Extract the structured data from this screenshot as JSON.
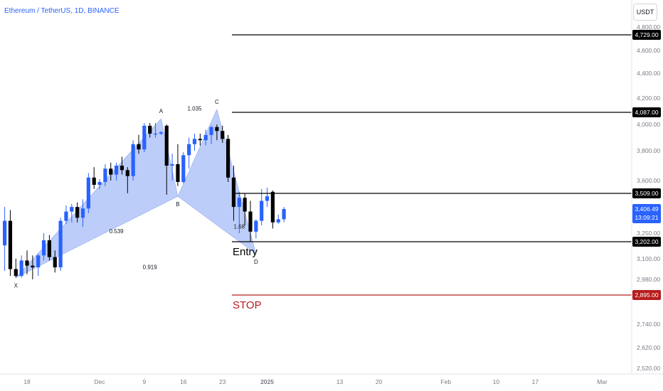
{
  "header": {
    "symbol_title": "Ethereum / TetherUS, 1D, BINANCE",
    "currency_button": "USDT"
  },
  "chart_data": {
    "type": "candlestick",
    "title": "Ethereum / TetherUS, 1D, BINANCE",
    "ylim": [
      2520,
      4860
    ],
    "y_ticks": [
      "4,800.00",
      "4,600.00",
      "4,400.00",
      "4,200.00",
      "4,000.00",
      "3,800.00",
      "3,600.00",
      "3,250.00",
      "3,100.00",
      "2,980.00",
      "2,740.00",
      "2,620.00",
      "2,520.00"
    ],
    "y_tick_values": [
      4800,
      4600,
      4400,
      4200,
      4000,
      3800,
      3600,
      3250,
      3100,
      2980,
      2740,
      2620,
      2520
    ],
    "x_ticks": [
      {
        "label": "18",
        "day": 0
      },
      {
        "label": "Dec",
        "day": 13
      },
      {
        "label": "9",
        "day": 21
      },
      {
        "label": "16",
        "day": 28
      },
      {
        "label": "23",
        "day": 35
      },
      {
        "label": "2025",
        "day": 43
      },
      {
        "label": "13",
        "day": 56
      },
      {
        "label": "20",
        "day": 63
      },
      {
        "label": "Feb",
        "day": 75
      },
      {
        "label": "10",
        "day": 84
      },
      {
        "label": "17",
        "day": 91
      },
      {
        "label": "Mar",
        "day": 103
      }
    ],
    "candles": [
      [
        -4,
        3180,
        3420,
        3030,
        3330
      ],
      [
        -3,
        3330,
        3400,
        3000,
        3040
      ],
      [
        -2,
        3040,
        3100,
        2990,
        3000
      ],
      [
        -1,
        3000,
        3120,
        2990,
        3090
      ],
      [
        0,
        3090,
        3150,
        3010,
        3060
      ],
      [
        1,
        3060,
        3120,
        2980,
        3050
      ],
      [
        2,
        3050,
        3130,
        3000,
        3120
      ],
      [
        3,
        3120,
        3250,
        3090,
        3210
      ],
      [
        4,
        3210,
        3240,
        3090,
        3110
      ],
      [
        5,
        3110,
        3150,
        3020,
        3050
      ],
      [
        6,
        3050,
        3350,
        3030,
        3330
      ],
      [
        7,
        3330,
        3430,
        3310,
        3390
      ],
      [
        8,
        3390,
        3440,
        3320,
        3420
      ],
      [
        9,
        3420,
        3450,
        3320,
        3350
      ],
      [
        10,
        3350,
        3470,
        3290,
        3410
      ],
      [
        11,
        3410,
        3650,
        3380,
        3620
      ],
      [
        12,
        3620,
        3690,
        3540,
        3570
      ],
      [
        13,
        3570,
        3610,
        3540,
        3590
      ],
      [
        14,
        3590,
        3710,
        3560,
        3680
      ],
      [
        15,
        3680,
        3720,
        3600,
        3640
      ],
      [
        16,
        3640,
        3720,
        3600,
        3700
      ],
      [
        17,
        3700,
        3760,
        3640,
        3670
      ],
      [
        18,
        3670,
        3690,
        3510,
        3630
      ],
      [
        19,
        3630,
        3880,
        3600,
        3850
      ],
      [
        20,
        3850,
        3920,
        3780,
        3810
      ],
      [
        21,
        3810,
        4010,
        3790,
        3990
      ],
      [
        22,
        3990,
        4010,
        3900,
        3930
      ],
      [
        23,
        3930,
        4010,
        3900,
        3930
      ],
      [
        24,
        3930,
        3950,
        3920,
        3940
      ],
      [
        25,
        3990,
        4000,
        3500,
        3700
      ],
      [
        26,
        3700,
        3780,
        3600,
        3710
      ],
      [
        27,
        3710,
        3850,
        3560,
        3590
      ],
      [
        28,
        3590,
        3790,
        3580,
        3770
      ],
      [
        29,
        3770,
        3900,
        3680,
        3850
      ],
      [
        30,
        3850,
        3930,
        3800,
        3890
      ],
      [
        31,
        3890,
        3930,
        3840,
        3880
      ],
      [
        32,
        3880,
        3960,
        3840,
        3920
      ],
      [
        33,
        3920,
        3990,
        3850,
        3980
      ],
      [
        34,
        3980,
        4000,
        3880,
        3950
      ],
      [
        35,
        3950,
        3990,
        3860,
        3890
      ],
      [
        36,
        3890,
        3920,
        3590,
        3620
      ],
      [
        37,
        3620,
        3700,
        3330,
        3420
      ],
      [
        38,
        3420,
        3520,
        3250,
        3480
      ],
      [
        39,
        3480,
        3510,
        3300,
        3390
      ],
      [
        40,
        3390,
        3460,
        3200,
        3260
      ],
      [
        41,
        3260,
        3340,
        3220,
        3330
      ],
      [
        42,
        3330,
        3540,
        3300,
        3460
      ],
      [
        43,
        3460,
        3550,
        3420,
        3490
      ],
      [
        44,
        3520,
        3530,
        3280,
        3320
      ],
      [
        45,
        3320,
        3370,
        3310,
        3340
      ],
      [
        46,
        3340,
        3420,
        3320,
        3406.49
      ]
    ],
    "harmonic_points": [
      {
        "label": "X",
        "day": -2,
        "price": 2990
      },
      {
        "label": "A",
        "day": 24,
        "price": 4040
      },
      {
        "label": "B",
        "day": 27,
        "price": 3490
      },
      {
        "label": "C",
        "day": 34,
        "price": 4110
      },
      {
        "label": "D",
        "day": 41,
        "price": 3130
      }
    ],
    "ratio_labels": [
      {
        "text": "0.539",
        "day": 16,
        "price": 3250
      },
      {
        "text": "1.035",
        "day": 30,
        "price": 4100
      },
      {
        "text": "1.68",
        "day": 38,
        "price": 3280
      },
      {
        "text": "0.919",
        "day": 22,
        "price": 3040
      }
    ],
    "levels": [
      {
        "label": "4,729.00",
        "price": 4729,
        "color": "#000000"
      },
      {
        "label": "4,087.00",
        "price": 4087,
        "color": "#000000"
      },
      {
        "label": "3,509.00",
        "price": 3509,
        "color": "#000000"
      },
      {
        "label": "3,202.00",
        "price": 3202,
        "color": "#000000",
        "note": "Entry"
      },
      {
        "label": "2,895.00",
        "price": 2895,
        "color": "#b71c1c",
        "note": "STOP"
      }
    ],
    "current_price": {
      "label": "3,406.49",
      "countdown": "13:09:21",
      "price": 3406.49,
      "color": "#2962ff"
    },
    "up_color": "#2962ff",
    "down_color": "#000000",
    "pattern_fill": "#a6bcf7"
  }
}
